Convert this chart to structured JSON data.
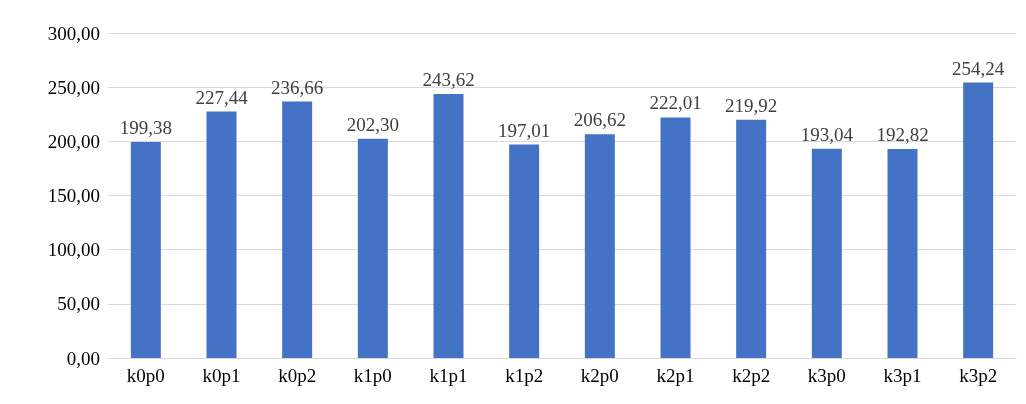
{
  "chart_data": {
    "type": "bar",
    "categories": [
      "k0p0",
      "k0p1",
      "k0p2",
      "k1p0",
      "k1p1",
      "k1p2",
      "k2p0",
      "k2p1",
      "k2p2",
      "k3p0",
      "k3p1",
      "k3p2"
    ],
    "values": [
      199.38,
      227.44,
      236.66,
      202.3,
      243.62,
      197.01,
      206.62,
      222.01,
      219.92,
      193.04,
      192.82,
      254.24
    ],
    "value_labels": [
      "199,38",
      "227,44",
      "236,66",
      "202,30",
      "243,62",
      "197,01",
      "206,62",
      "222,01",
      "219,92",
      "193,04",
      "192,82",
      "254,24"
    ],
    "color": "#4472c4",
    "ylim": [
      0,
      300
    ],
    "yticks": [
      {
        "value": 0,
        "label": "0,00"
      },
      {
        "value": 50,
        "label": "50,00"
      },
      {
        "value": 100,
        "label": "100,00"
      },
      {
        "value": 150,
        "label": "150,00"
      },
      {
        "value": 200,
        "label": "200,00"
      },
      {
        "value": 250,
        "label": "250,00"
      },
      {
        "value": 300,
        "label": "300,00"
      }
    ],
    "grid": "y"
  }
}
